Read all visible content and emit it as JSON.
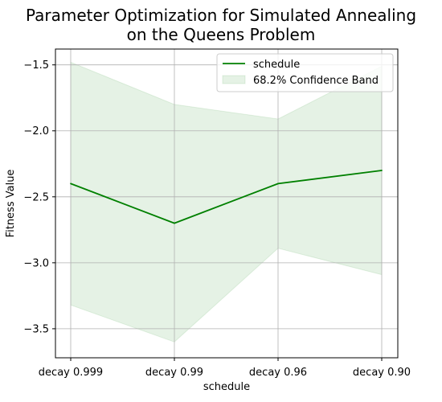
{
  "chart_data": {
    "type": "line",
    "title_lines": [
      "Parameter Optimization for Simulated Annealing",
      "on the Queens Problem"
    ],
    "xlabel": "schedule",
    "ylabel": "Fitness Value",
    "categories": [
      "decay 0.999",
      "decay 0.99",
      "decay 0.96",
      "decay 0.90"
    ],
    "series": [
      {
        "name": "schedule",
        "values": [
          -2.4,
          -2.7,
          -2.4,
          -2.3
        ],
        "color": "#008000"
      }
    ],
    "band": {
      "name": "68.2% Confidence Band",
      "upper": [
        -1.48,
        -1.8,
        -1.91,
        -1.51
      ],
      "lower": [
        -3.32,
        -3.6,
        -2.89,
        -3.09
      ],
      "color": "#008000",
      "opacity": 0.1
    },
    "ylim": [
      -3.72,
      -1.38
    ],
    "yticks": [
      -1.5,
      -2.0,
      -2.5,
      -3.0,
      -3.5
    ],
    "ytick_labels": [
      "−1.5",
      "−2.0",
      "−2.5",
      "−3.0",
      "−3.5"
    ],
    "grid": true,
    "legend_position": "top-right"
  }
}
